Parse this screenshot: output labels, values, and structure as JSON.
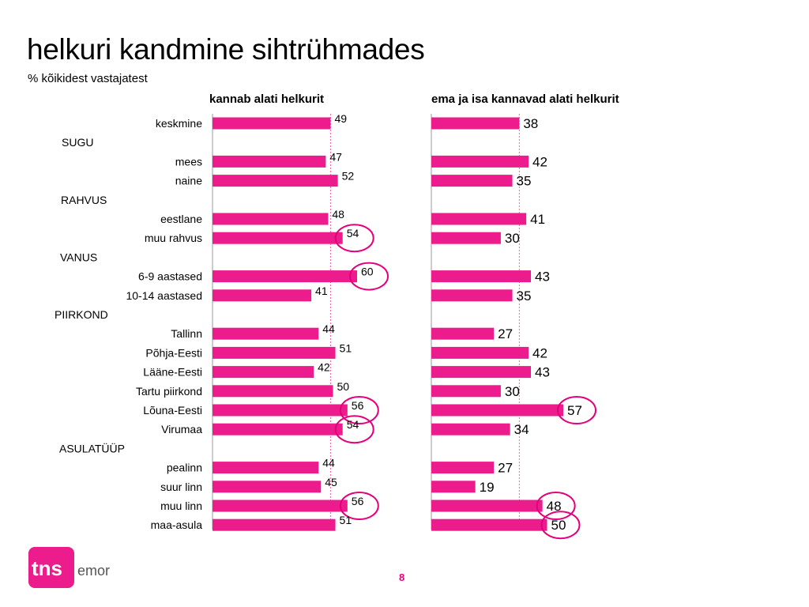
{
  "title": "helkuri kandmine sihtrühmades",
  "subtitle": "% kõikidest vastajatest",
  "page_number": "8",
  "logo": {
    "brand": "tns",
    "suffix": "emor",
    "color": "#e4007c"
  },
  "colors": {
    "bar": "#ec1c8c",
    "highlight_circle": "#e4007c",
    "axis": "#999999",
    "ref_line": "#e4007c"
  },
  "rows": [
    {
      "label": "keskmine",
      "type": "item"
    },
    {
      "label": "SUGU",
      "type": "group"
    },
    {
      "label": "mees",
      "type": "item"
    },
    {
      "label": "naine",
      "type": "item"
    },
    {
      "label": "RAHVUS",
      "type": "group"
    },
    {
      "label": "eestlane",
      "type": "item"
    },
    {
      "label": "muu rahvus",
      "type": "item"
    },
    {
      "label": "VANUS",
      "type": "group"
    },
    {
      "label": "6-9 aastased",
      "type": "item"
    },
    {
      "label": "10-14 aastased",
      "type": "item"
    },
    {
      "label": "PIIRKOND",
      "type": "group"
    },
    {
      "label": "Tallinn",
      "type": "item"
    },
    {
      "label": "Põhja-Eesti",
      "type": "item"
    },
    {
      "label": "Lääne-Eesti",
      "type": "item"
    },
    {
      "label": "Tartu piirkond",
      "type": "item"
    },
    {
      "label": "Lõuna-Eesti",
      "type": "item"
    },
    {
      "label": "Virumaa",
      "type": "item"
    },
    {
      "label": "ASULATÜÜP",
      "type": "group"
    },
    {
      "label": "pealinn",
      "type": "item"
    },
    {
      "label": "suur linn",
      "type": "item"
    },
    {
      "label": "muu linn",
      "type": "item"
    },
    {
      "label": "maa-asula",
      "type": "item"
    }
  ],
  "chart_data": [
    {
      "type": "bar",
      "orientation": "horizontal",
      "title": "kannab alati helkurit",
      "categories": [
        "keskmine",
        "mees",
        "naine",
        "eestlane",
        "muu rahvus",
        "6-9 aastased",
        "10-14 aastased",
        "Tallinn",
        "Põhja-Eesti",
        "Lääne-Eesti",
        "Tartu piirkond",
        "Lõuna-Eesti",
        "Virumaa",
        "pealinn",
        "suur linn",
        "muu linn",
        "maa-asula"
      ],
      "values": [
        49,
        47,
        52,
        48,
        54,
        60,
        41,
        44,
        51,
        42,
        50,
        56,
        54,
        44,
        45,
        56,
        51
      ],
      "highlighted": [
        "muu rahvus",
        "6-9 aastased",
        "Lõuna-Eesti",
        "Virumaa",
        "muu linn"
      ],
      "reference_line": 49,
      "xlim": [
        0,
        100
      ],
      "grid": false
    },
    {
      "type": "bar",
      "orientation": "horizontal",
      "title": "ema ja isa kannavad alati helkurit",
      "categories": [
        "keskmine",
        "mees",
        "naine",
        "eestlane",
        "muu rahvus",
        "6-9 aastased",
        "10-14 aastased",
        "Tallinn",
        "Põhja-Eesti",
        "Lääne-Eesti",
        "Tartu piirkond",
        "Lõuna-Eesti",
        "Virumaa",
        "pealinn",
        "suur linn",
        "muu linn",
        "maa-asula"
      ],
      "values": [
        38,
        42,
        35,
        41,
        30,
        43,
        35,
        27,
        42,
        43,
        30,
        57,
        34,
        27,
        19,
        48,
        50
      ],
      "highlighted": [
        "Lõuna-Eesti",
        "muu linn",
        "maa-asula"
      ],
      "reference_line": 38,
      "xlim": [
        0,
        100
      ],
      "grid": false
    }
  ]
}
